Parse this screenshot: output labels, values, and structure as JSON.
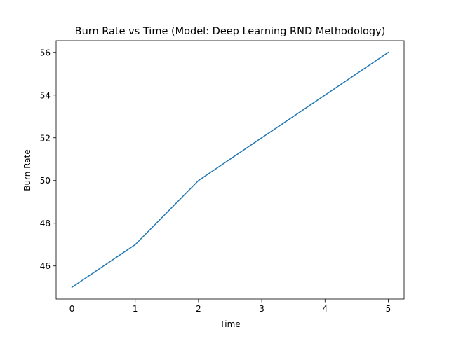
{
  "chart_data": {
    "type": "line",
    "title": "Burn Rate vs Time (Model: Deep Learning RND Methodology)",
    "xlabel": "Time",
    "ylabel": "Burn Rate",
    "x": [
      0,
      1,
      2,
      3,
      4,
      5
    ],
    "series": [
      {
        "values": [
          45,
          47,
          50,
          52,
          54,
          56
        ],
        "color": "#1f77b4"
      }
    ],
    "xlim": [
      -0.25,
      5.25
    ],
    "ylim": [
      44.45,
      56.55
    ],
    "xticks": [
      0,
      1,
      2,
      3,
      4,
      5
    ],
    "yticks": [
      46,
      48,
      50,
      52,
      54,
      56
    ],
    "grid": false,
    "legend": "none"
  }
}
